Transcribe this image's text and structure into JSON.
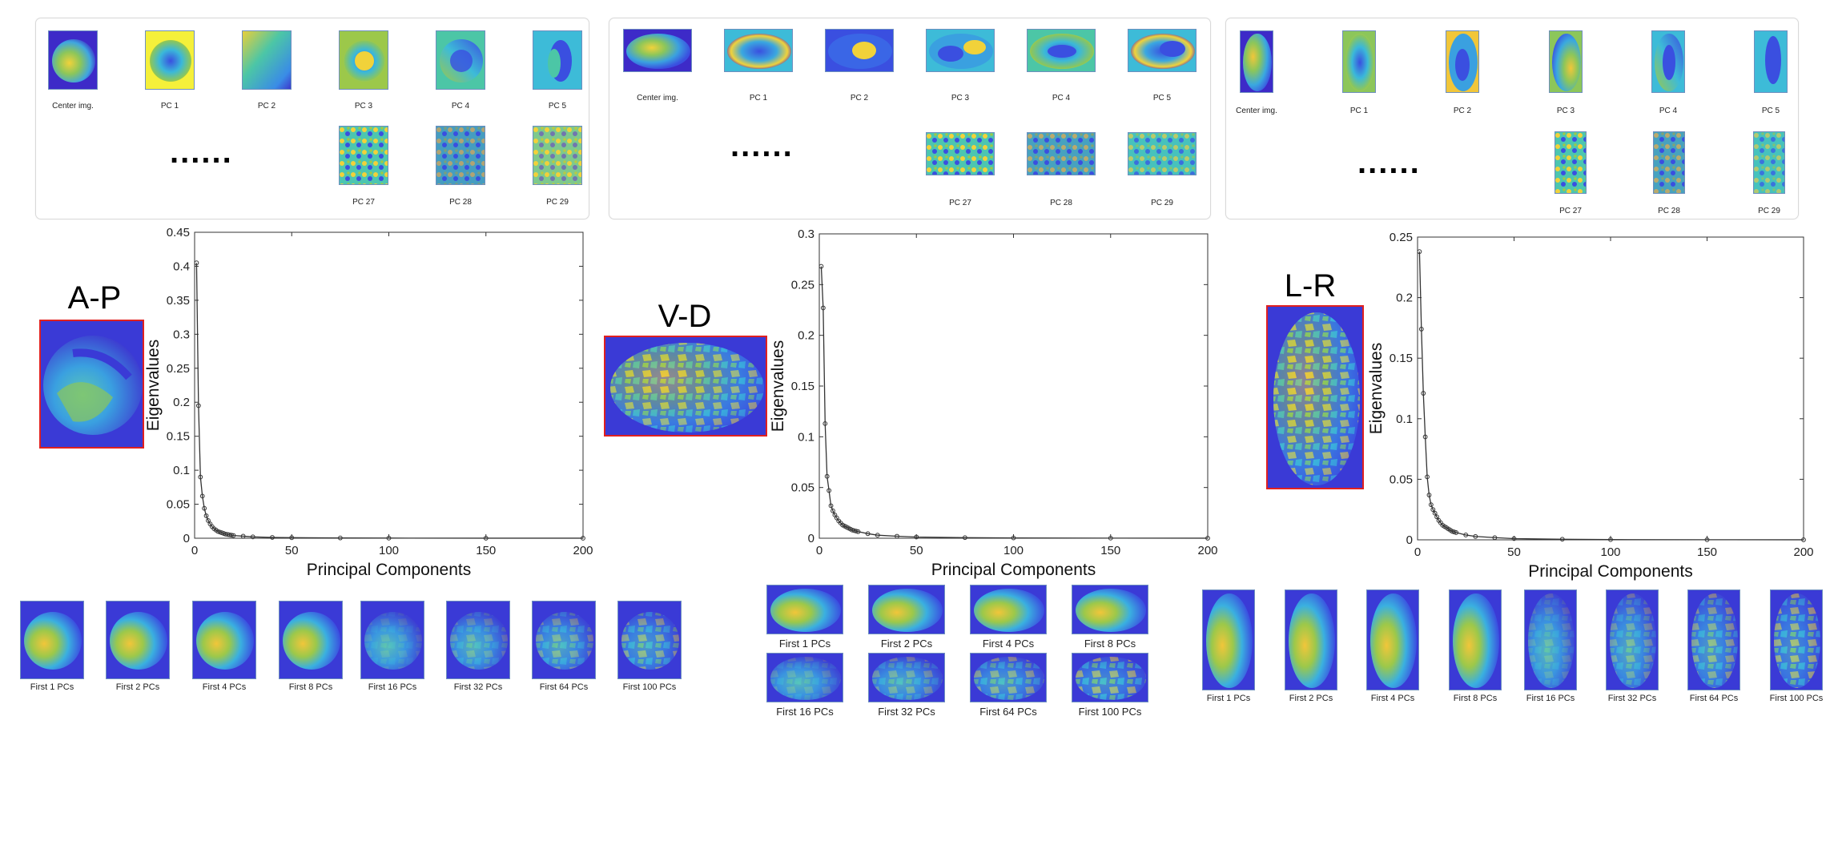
{
  "palette": {
    "dark_blue": "#3d2ac8",
    "blue": "#3a66e6",
    "cyan": "#3dbbd8",
    "teal": "#4cc6a6",
    "green": "#9cc84a",
    "yellow": "#f5e63a",
    "frame_red": "#e02020"
  },
  "panels": [
    {
      "id": "ap",
      "orientation_label": "A-P",
      "center_label": "Center img.",
      "pc_top_labels": [
        "PC 1",
        "PC 2",
        "PC 3",
        "PC 4",
        "PC 5"
      ],
      "pc_bottom_labels": [
        "PC 27",
        "PC 28",
        "PC 29"
      ],
      "ellipsis": "......",
      "recon_labels": [
        "First 1 PCs",
        "First 2 PCs",
        "First 4 PCs",
        "First 8 PCs",
        "First 16 PCs",
        "First 32 PCs",
        "First 64 PCs",
        "First 100 PCs"
      ]
    },
    {
      "id": "vd",
      "orientation_label": "V-D",
      "center_label": "Center img.",
      "pc_top_labels": [
        "PC 1",
        "PC 2",
        "PC 3",
        "PC 4",
        "PC 5"
      ],
      "pc_bottom_labels": [
        "PC 27",
        "PC 28",
        "PC 29"
      ],
      "ellipsis": "......",
      "recon_labels": [
        "First 1 PCs",
        "First 2 PCs",
        "First 4 PCs",
        "First 8 PCs",
        "First 16 PCs",
        "First 32 PCs",
        "First 64 PCs",
        "First 100 PCs"
      ]
    },
    {
      "id": "lr",
      "orientation_label": "L-R",
      "center_label": "Center img.",
      "pc_top_labels": [
        "PC 1",
        "PC 2",
        "PC 3",
        "PC 4",
        "PC 5"
      ],
      "pc_bottom_labels": [
        "PC 27",
        "PC 28",
        "PC 29"
      ],
      "ellipsis": "......",
      "recon_labels": [
        "First 1 PCs",
        "First 2 PCs",
        "First 4 PCs",
        "First 8 PCs",
        "First 16 PCs",
        "First 32 PCs",
        "First 64 PCs",
        "First 100 PCs"
      ]
    }
  ],
  "chart_data": [
    {
      "type": "line",
      "xlabel": "Principal Components",
      "ylabel": "Eigenvalues",
      "xlim": [
        0,
        200
      ],
      "ylim": [
        0,
        0.45
      ],
      "xticks": [
        0,
        50,
        100,
        150,
        200
      ],
      "yticks": [
        0,
        0.05,
        0.1,
        0.15,
        0.2,
        0.25,
        0.3,
        0.35,
        0.4,
        0.45
      ],
      "ytick_labels": [
        "0",
        "0.05",
        "0.1",
        "0.15",
        "0.2",
        "0.25",
        "0.3",
        "0.35",
        "0.4",
        "0.45"
      ],
      "x": [
        1,
        2,
        3,
        4,
        5,
        6,
        7,
        8,
        9,
        10,
        11,
        12,
        13,
        14,
        15,
        16,
        17,
        18,
        19,
        20,
        25,
        30,
        40,
        50,
        75,
        100,
        150,
        200
      ],
      "y": [
        0.405,
        0.195,
        0.09,
        0.062,
        0.044,
        0.033,
        0.026,
        0.021,
        0.017,
        0.014,
        0.012,
        0.01,
        0.009,
        0.008,
        0.007,
        0.006,
        0.0055,
        0.005,
        0.0045,
        0.004,
        0.003,
        0.002,
        0.0012,
        0.0008,
        0.0004,
        0.0002,
        0.0001,
        5e-05
      ]
    },
    {
      "type": "line",
      "xlabel": "Principal Components",
      "ylabel": "Eigenvalues",
      "xlim": [
        0,
        200
      ],
      "ylim": [
        0,
        0.3
      ],
      "xticks": [
        0,
        50,
        100,
        150,
        200
      ],
      "yticks": [
        0,
        0.05,
        0.1,
        0.15,
        0.2,
        0.25,
        0.3
      ],
      "ytick_labels": [
        "0",
        "0.05",
        "0.1",
        "0.15",
        "0.2",
        "0.25",
        "0.3"
      ],
      "x": [
        1,
        2,
        3,
        4,
        5,
        6,
        7,
        8,
        9,
        10,
        11,
        12,
        13,
        14,
        15,
        16,
        17,
        18,
        19,
        20,
        25,
        30,
        40,
        50,
        75,
        100,
        150,
        200
      ],
      "y": [
        0.268,
        0.227,
        0.113,
        0.061,
        0.047,
        0.032,
        0.027,
        0.023,
        0.02,
        0.017,
        0.015,
        0.013,
        0.012,
        0.011,
        0.01,
        0.009,
        0.008,
        0.0075,
        0.007,
        0.0065,
        0.0045,
        0.003,
        0.002,
        0.0012,
        0.0006,
        0.0003,
        0.0001,
        5e-05
      ]
    },
    {
      "type": "line",
      "xlabel": "Principal Components",
      "ylabel": "Eigenvalues",
      "xlim": [
        0,
        200
      ],
      "ylim": [
        0,
        0.25
      ],
      "xticks": [
        0,
        50,
        100,
        150,
        200
      ],
      "yticks": [
        0,
        0.05,
        0.1,
        0.15,
        0.2,
        0.25
      ],
      "ytick_labels": [
        "0",
        "0.05",
        "0.1",
        "0.15",
        "0.2",
        "0.25"
      ],
      "x": [
        1,
        2,
        3,
        4,
        5,
        6,
        7,
        8,
        9,
        10,
        11,
        12,
        13,
        14,
        15,
        16,
        17,
        18,
        19,
        20,
        25,
        30,
        40,
        50,
        75,
        100,
        150,
        200
      ],
      "y": [
        0.238,
        0.174,
        0.121,
        0.085,
        0.052,
        0.037,
        0.029,
        0.025,
        0.022,
        0.019,
        0.016,
        0.014,
        0.012,
        0.011,
        0.01,
        0.009,
        0.008,
        0.007,
        0.0065,
        0.006,
        0.004,
        0.0028,
        0.0018,
        0.001,
        0.0005,
        0.0002,
        0.0001,
        5e-05
      ]
    }
  ]
}
